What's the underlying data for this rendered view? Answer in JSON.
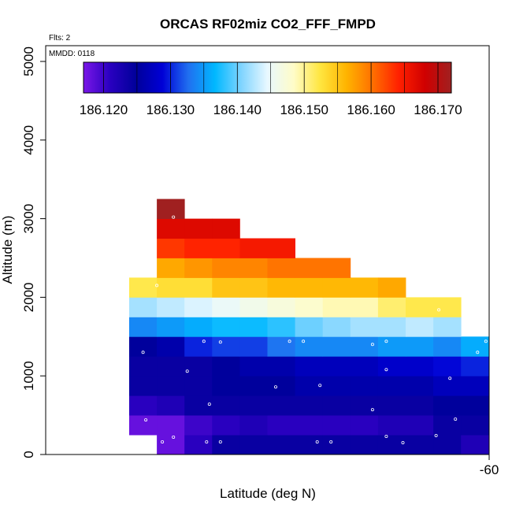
{
  "chart_data": {
    "type": "heatmap",
    "title": "ORCAS RF02miz CO2_FFF_FMPD",
    "annotations": [
      "Flts: 2",
      "MMDD: 0118"
    ],
    "xlabel": "Latitude (deg N)",
    "ylabel": "Altitude (m)",
    "x_tick_labels": [
      "-60"
    ],
    "y_ticks": [
      0,
      1000,
      2000,
      3000,
      4000,
      5000
    ],
    "y_tick_labels": [
      "0",
      "1000",
      "2000",
      "3000",
      "4000",
      "5000"
    ],
    "ylim": [
      0,
      5200
    ],
    "colorbar": {
      "position": "top",
      "range": [
        186.117,
        186.172
      ],
      "ticks": [
        186.12,
        186.13,
        186.14,
        186.15,
        186.16,
        186.17
      ],
      "tick_labels": [
        "186.120",
        "186.130",
        "186.140",
        "186.150",
        "186.160",
        "186.170"
      ],
      "stops": [
        "#7a17e8",
        "#2a00c0",
        "#00009a",
        "#0000d6",
        "#2070f0",
        "#00b8ff",
        "#7fd4ff",
        "#e8f8ff",
        "#fffcc8",
        "#ffe640",
        "#ffb400",
        "#ff7000",
        "#ff2000",
        "#d00000",
        "#a02020"
      ]
    },
    "cell_height_m": 250,
    "rows": [
      {
        "alt": 125,
        "start": 1,
        "values": [
          186.118,
          186.121,
          186.124,
          186.124,
          186.124,
          186.124,
          186.124,
          186.124,
          186.124,
          186.124,
          186.124,
          186.122,
          186.119
        ]
      },
      {
        "alt": 375,
        "start": 0,
        "values": [
          186.118,
          186.118,
          186.12,
          186.121,
          186.122,
          186.121,
          186.121,
          186.121,
          186.121,
          186.122,
          186.122,
          186.124,
          186.124
        ]
      },
      {
        "alt": 625,
        "start": 0,
        "values": [
          186.121,
          186.122,
          186.124,
          186.124,
          186.124,
          186.124,
          186.124,
          186.124,
          186.124,
          186.124,
          186.124,
          186.125,
          186.125
        ]
      },
      {
        "alt": 875,
        "start": 0,
        "values": [
          186.124,
          186.124,
          186.124,
          186.125,
          186.125,
          186.125,
          186.126,
          186.126,
          186.126,
          186.126,
          186.126,
          186.127,
          186.127
        ]
      },
      {
        "alt": 1125,
        "start": 0,
        "values": [
          186.124,
          186.124,
          186.124,
          186.125,
          186.126,
          186.126,
          186.127,
          186.127,
          186.127,
          186.128,
          186.128,
          186.129,
          186.13
        ]
      },
      {
        "alt": 1375,
        "start": 0,
        "values": [
          186.125,
          186.126,
          186.13,
          186.131,
          186.131,
          186.133,
          186.134,
          186.134,
          186.134,
          186.135,
          186.135,
          186.134,
          186.136
        ]
      },
      {
        "alt": 1625,
        "start": 0,
        "values": [
          186.134,
          186.135,
          186.136,
          186.137,
          186.137,
          186.138,
          186.14,
          186.141,
          186.142,
          186.142,
          186.143,
          186.142
        ]
      },
      {
        "alt": 1875,
        "start": 0,
        "values": [
          186.142,
          186.143,
          186.144,
          186.145,
          186.146,
          186.147,
          186.148,
          186.149,
          186.149,
          186.151,
          186.152,
          186.152
        ]
      },
      {
        "alt": 2125,
        "start": 0,
        "values": [
          186.152,
          186.153,
          186.153,
          186.155,
          186.155,
          186.156,
          186.156,
          186.156,
          186.156,
          186.157
        ]
      },
      {
        "alt": 2375,
        "start": 1,
        "values": [
          186.157,
          186.158,
          186.159,
          186.159,
          186.16,
          186.16,
          186.16
        ]
      },
      {
        "alt": 2625,
        "start": 1,
        "values": [
          186.163,
          186.164,
          186.164,
          186.165,
          186.165
        ]
      },
      {
        "alt": 2875,
        "start": 1,
        "values": [
          186.167,
          186.167,
          186.167
        ]
      },
      {
        "alt": 3125,
        "start": 1,
        "values": [
          186.172
        ]
      }
    ],
    "points": [
      [
        1.2,
        160
      ],
      [
        1.6,
        220
      ],
      [
        2.8,
        160
      ],
      [
        3.3,
        160
      ],
      [
        6.8,
        160
      ],
      [
        7.3,
        160
      ],
      [
        9.3,
        230
      ],
      [
        9.9,
        150
      ],
      [
        11.1,
        240
      ],
      [
        0.6,
        440
      ],
      [
        2.9,
        640
      ],
      [
        8.8,
        570
      ],
      [
        11.8,
        450
      ],
      [
        5.3,
        860
      ],
      [
        6.9,
        880
      ],
      [
        9.3,
        1080
      ],
      [
        11.6,
        970
      ],
      [
        2.1,
        1060
      ],
      [
        0.5,
        1300
      ],
      [
        2.7,
        1440
      ],
      [
        3.3,
        1430
      ],
      [
        5.8,
        1440
      ],
      [
        6.3,
        1440
      ],
      [
        8.8,
        1400
      ],
      [
        9.3,
        1440
      ],
      [
        12.6,
        1300
      ],
      [
        12.9,
        1440
      ],
      [
        1.0,
        2150
      ],
      [
        11.2,
        1840
      ],
      [
        1.6,
        3020
      ]
    ]
  }
}
